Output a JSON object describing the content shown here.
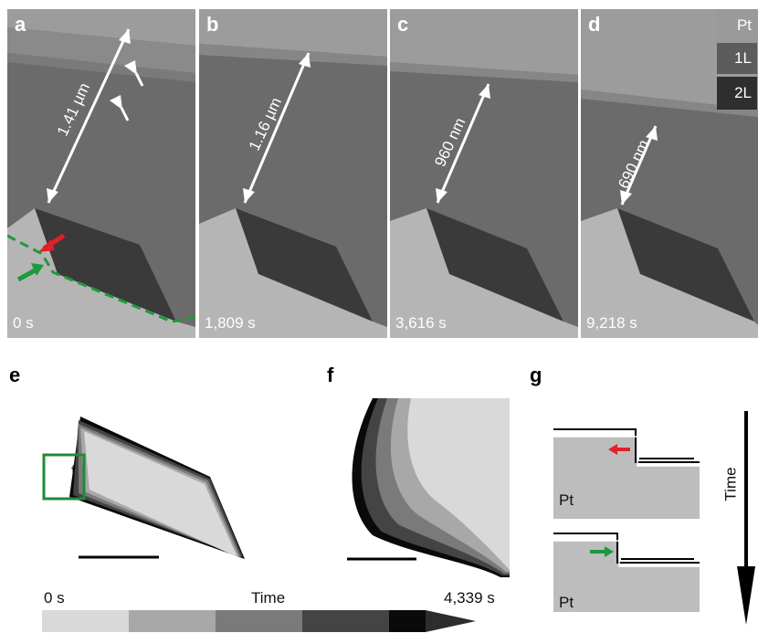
{
  "panels": [
    {
      "letter": "a",
      "time": "0 s",
      "measure": "1.41 µm"
    },
    {
      "letter": "b",
      "time": "1,809 s",
      "measure": "1.16 µm"
    },
    {
      "letter": "c",
      "time": "3,616 s",
      "measure": "960 nm"
    },
    {
      "letter": "d",
      "time": "9,218 s",
      "measure": "690 nm"
    }
  ],
  "legend": {
    "items": [
      "Pt",
      "1L",
      "2L"
    ],
    "colors": [
      "#9a9a9a",
      "#5c5c5c",
      "#2e2e2e"
    ]
  },
  "lower": {
    "e_letter": "e",
    "f_letter": "f",
    "g_letter": "g",
    "inset_label": "f",
    "time_start": "0 s",
    "time_label": "Time",
    "time_end": "4,339 s",
    "colorbar": [
      "#d9d9d9",
      "#a8a8a8",
      "#7a7a7a",
      "#444444",
      "#0a0a0a"
    ],
    "pt_label_1": "Pt",
    "pt_label_2": "Pt",
    "time_arrow_label": "Time",
    "arrow_colors": {
      "red": "#e0202a",
      "green": "#1a9a3c",
      "box": "#1f8a3a"
    }
  }
}
